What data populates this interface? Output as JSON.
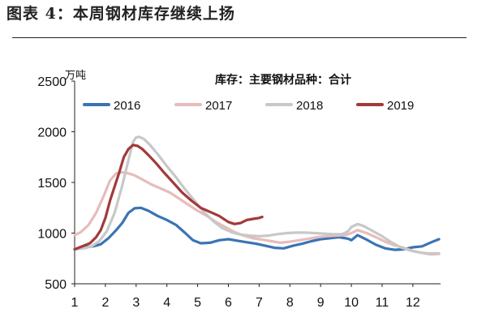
{
  "figure": {
    "caption": "图表 4：本周钢材库存继续上扬"
  },
  "chart_data": {
    "type": "line",
    "title": "库存：主要钢材品种：合计",
    "ylabel": "万吨",
    "xlabel": "",
    "xlim": [
      1,
      12.9
    ],
    "ylim": [
      500,
      2500
    ],
    "x_ticks": [
      "1",
      "2",
      "3",
      "4",
      "5",
      "6",
      "7",
      "8",
      "9",
      "10",
      "11",
      "12"
    ],
    "y_ticks": [
      "500",
      "1000",
      "1500",
      "2000",
      "2500"
    ],
    "grid": false,
    "legend_position": "top",
    "series": [
      {
        "name": "2016",
        "color": "#3a74b4",
        "x": [
          1.0,
          1.3,
          1.6,
          1.85,
          2.1,
          2.35,
          2.55,
          2.75,
          2.95,
          3.15,
          3.4,
          3.7,
          4.0,
          4.3,
          4.6,
          4.85,
          5.1,
          5.4,
          5.7,
          6.0,
          6.3,
          6.6,
          6.9,
          7.2,
          7.5,
          7.8,
          8.1,
          8.4,
          8.7,
          9.0,
          9.3,
          9.6,
          9.9,
          10.0,
          10.2,
          10.5,
          10.8,
          11.1,
          11.4,
          11.7,
          12.0,
          12.3,
          12.6,
          12.85
        ],
        "values": [
          840,
          860,
          870,
          890,
          950,
          1030,
          1100,
          1200,
          1245,
          1250,
          1220,
          1170,
          1130,
          1080,
          1000,
          930,
          900,
          905,
          930,
          940,
          925,
          910,
          895,
          875,
          855,
          850,
          875,
          895,
          920,
          940,
          950,
          960,
          945,
          930,
          980,
          935,
          885,
          850,
          835,
          840,
          860,
          870,
          910,
          940
        ]
      },
      {
        "name": "2017",
        "color": "#e6bcbc",
        "x": [
          1.0,
          1.2,
          1.45,
          1.7,
          1.95,
          2.15,
          2.35,
          2.55,
          2.75,
          2.95,
          3.2,
          3.5,
          3.8,
          4.1,
          4.4,
          4.7,
          5.0,
          5.3,
          5.6,
          5.9,
          6.2,
          6.5,
          6.8,
          7.1,
          7.4,
          7.7,
          8.0,
          8.3,
          8.6,
          8.9,
          9.2,
          9.5,
          9.8,
          10.0,
          10.2,
          10.5,
          10.8,
          11.1,
          11.4,
          11.7,
          12.0,
          12.3,
          12.6,
          12.85
        ],
        "values": [
          980,
          1010,
          1080,
          1200,
          1370,
          1520,
          1590,
          1600,
          1590,
          1570,
          1530,
          1480,
          1440,
          1400,
          1340,
          1280,
          1220,
          1170,
          1110,
          1060,
          1010,
          975,
          950,
          935,
          920,
          905,
          915,
          930,
          945,
          960,
          970,
          975,
          980,
          1000,
          1030,
          1000,
          960,
          915,
          880,
          855,
          825,
          805,
          790,
          795
        ]
      },
      {
        "name": "2018",
        "color": "#c8c8c8",
        "x": [
          1.0,
          1.3,
          1.55,
          1.8,
          2.05,
          2.3,
          2.55,
          2.75,
          2.9,
          3.0,
          3.1,
          3.25,
          3.45,
          3.7,
          4.0,
          4.3,
          4.6,
          4.9,
          5.2,
          5.5,
          5.8,
          6.1,
          6.4,
          6.7,
          7.0,
          7.3,
          7.6,
          7.9,
          8.2,
          8.5,
          8.8,
          9.1,
          9.4,
          9.7,
          9.9,
          10.0,
          10.2,
          10.4,
          10.7,
          11.0,
          11.3,
          11.6,
          11.9,
          12.2,
          12.5,
          12.85
        ],
        "values": [
          840,
          850,
          870,
          920,
          1020,
          1200,
          1470,
          1720,
          1900,
          1945,
          1950,
          1930,
          1870,
          1780,
          1660,
          1550,
          1430,
          1320,
          1210,
          1120,
          1050,
          1010,
          985,
          975,
          970,
          975,
          990,
          1000,
          1005,
          1005,
          1000,
          995,
          990,
          990,
          1020,
          1060,
          1090,
          1070,
          1020,
          970,
          910,
          860,
          830,
          810,
          800,
          800
        ]
      },
      {
        "name": "2019",
        "color": "#a23a3a",
        "x": [
          1.0,
          1.25,
          1.5,
          1.7,
          1.85,
          2.0,
          2.15,
          2.3,
          2.45,
          2.6,
          2.75,
          2.9,
          3.05,
          3.2,
          3.4,
          3.65,
          3.9,
          4.2,
          4.5,
          4.8,
          5.1,
          5.4,
          5.7,
          6.0,
          6.2,
          6.4,
          6.6,
          6.8,
          7.0,
          7.1
        ],
        "values": [
          840,
          870,
          900,
          960,
          1030,
          1150,
          1320,
          1460,
          1600,
          1750,
          1830,
          1870,
          1860,
          1830,
          1770,
          1690,
          1600,
          1500,
          1400,
          1320,
          1250,
          1210,
          1170,
          1110,
          1090,
          1100,
          1130,
          1140,
          1150,
          1160
        ]
      }
    ]
  }
}
